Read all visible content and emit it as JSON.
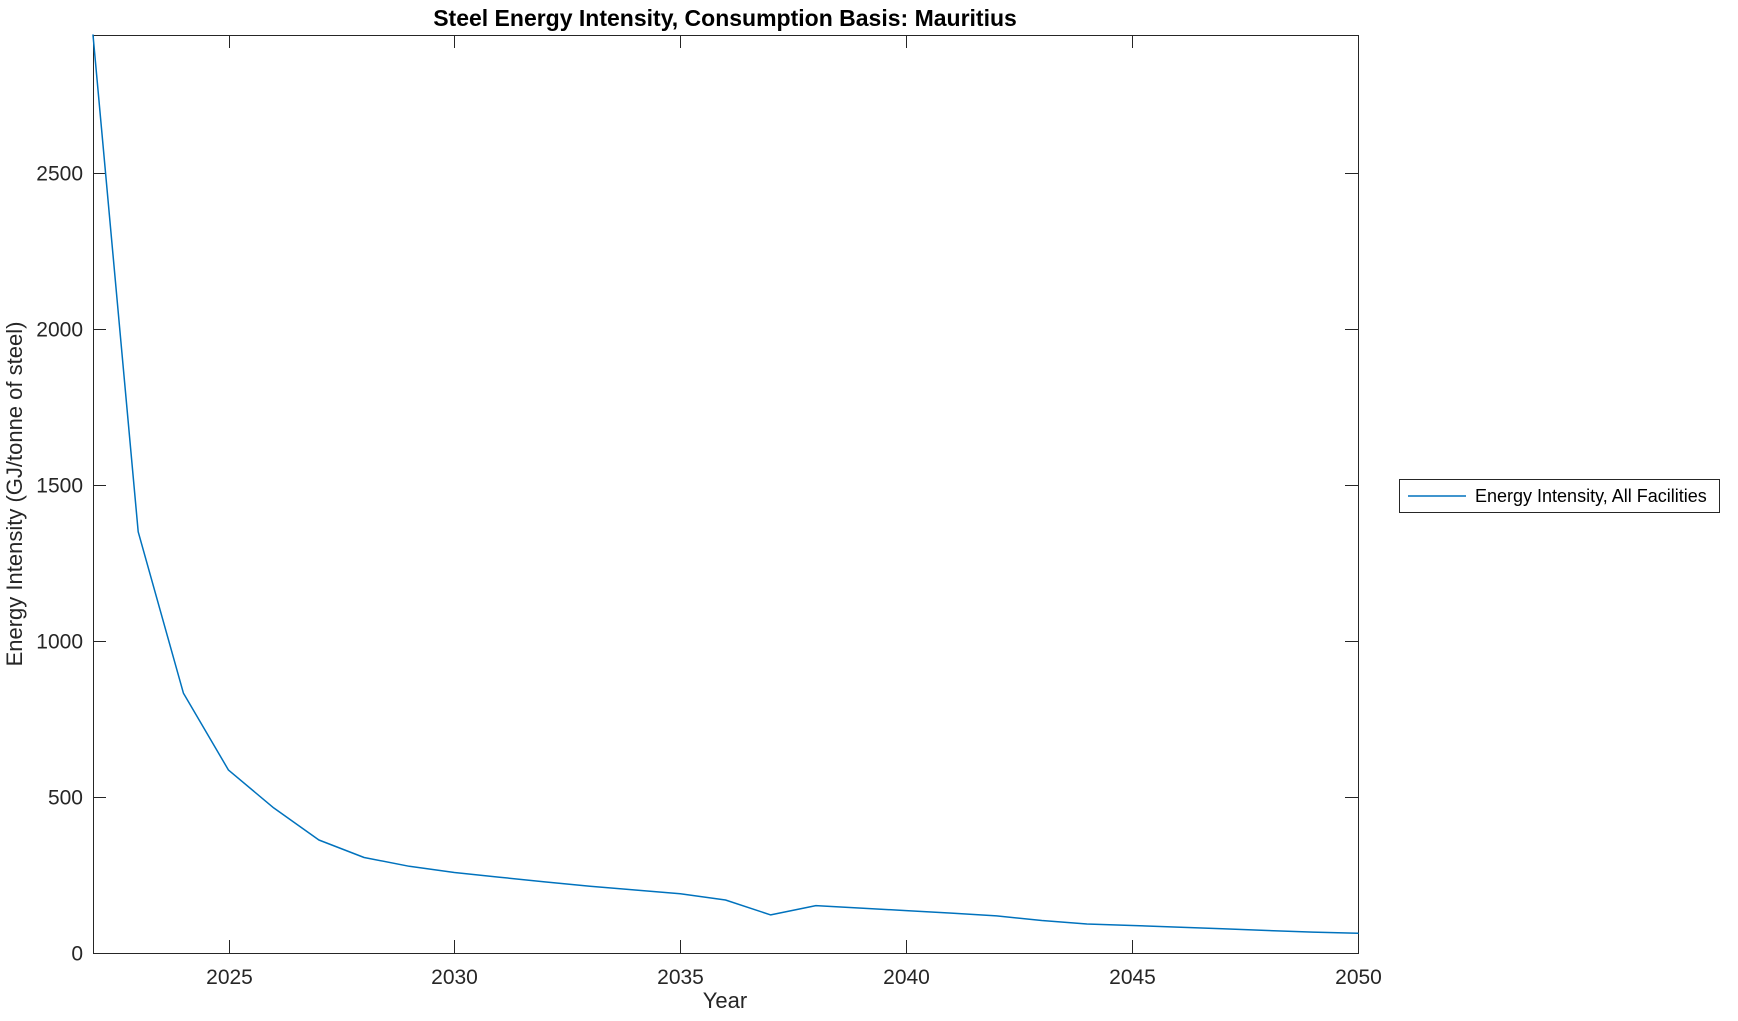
{
  "chart_data": {
    "type": "line",
    "title": "Steel Energy Intensity, Consumption Basis: Mauritius",
    "xlabel": "Year",
    "ylabel": "Energy Intensity (GJ/tonne of steel)",
    "xlim": [
      2022,
      2050
    ],
    "ylim": [
      0,
      2942
    ],
    "xticks": [
      2025,
      2030,
      2035,
      2040,
      2045,
      2050
    ],
    "yticks": [
      0,
      500,
      1000,
      1500,
      2000,
      2500
    ],
    "grid": false,
    "legend_position": "right-outside",
    "axis_color": "#262626",
    "series": [
      {
        "name": "Energy Intensity, All Facilities",
        "color": "#0072BD",
        "x": [
          2022,
          2023,
          2024,
          2025,
          2026,
          2027,
          2028,
          2029,
          2030,
          2031,
          2032,
          2033,
          2034,
          2035,
          2036,
          2037,
          2038,
          2039,
          2040,
          2041,
          2042,
          2043,
          2044,
          2045,
          2046,
          2047,
          2048,
          2049,
          2050
        ],
        "y": [
          2942,
          1350,
          833,
          586,
          465,
          362,
          306,
          278,
          258,
          243,
          228,
          214,
          202,
          190,
          170,
          122,
          152,
          144,
          136,
          128,
          119,
          104,
          93,
          88,
          83,
          78,
          72,
          67,
          63
        ]
      }
    ]
  }
}
